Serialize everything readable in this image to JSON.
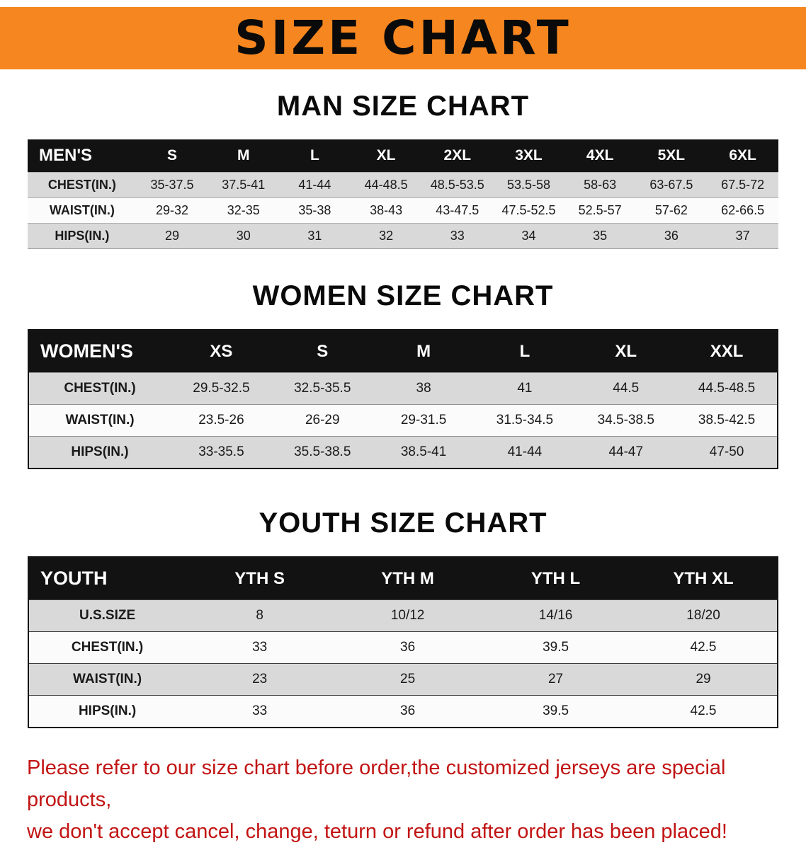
{
  "banner": {
    "title": "SIZE CHART"
  },
  "colors": {
    "banner_bg": "#F6861F",
    "table_header_bg": "#121212",
    "row_alt_bg": "#D9D9D9",
    "notice_text": "#C21414"
  },
  "chart_data": [
    {
      "type": "table",
      "title": "MAN SIZE CHART",
      "header": [
        "MEN'S",
        "S",
        "M",
        "L",
        "XL",
        "2XL",
        "3XL",
        "4XL",
        "5XL",
        "6XL"
      ],
      "rows": [
        [
          "CHEST(IN.)",
          "35-37.5",
          "37.5-41",
          "41-44",
          "44-48.5",
          "48.5-53.5",
          "53.5-58",
          "58-63",
          "63-67.5",
          "67.5-72"
        ],
        [
          "WAIST(IN.)",
          "29-32",
          "32-35",
          "35-38",
          "38-43",
          "43-47.5",
          "47.5-52.5",
          "52.5-57",
          "57-62",
          "62-66.5"
        ],
        [
          "HIPS(IN.)",
          "29",
          "30",
          "31",
          "32",
          "33",
          "34",
          "35",
          "36",
          "37"
        ]
      ]
    },
    {
      "type": "table",
      "title": "WOMEN SIZE CHART",
      "header": [
        "WOMEN'S",
        "XS",
        "S",
        "M",
        "L",
        "XL",
        "XXL"
      ],
      "rows": [
        [
          "CHEST(IN.)",
          "29.5-32.5",
          "32.5-35.5",
          "38",
          "41",
          "44.5",
          "44.5-48.5"
        ],
        [
          "WAIST(IN.)",
          "23.5-26",
          "26-29",
          "29-31.5",
          "31.5-34.5",
          "34.5-38.5",
          "38.5-42.5"
        ],
        [
          "HIPS(IN.)",
          "33-35.5",
          "35.5-38.5",
          "38.5-41",
          "41-44",
          "44-47",
          "47-50"
        ]
      ]
    },
    {
      "type": "table",
      "title": "YOUTH SIZE CHART",
      "header": [
        "YOUTH",
        "YTH S",
        "YTH M",
        "YTH L",
        "YTH XL"
      ],
      "rows": [
        [
          "U.S.SIZE",
          "8",
          "10/12",
          "14/16",
          "18/20"
        ],
        [
          "CHEST(IN.)",
          "33",
          "36",
          "39.5",
          "42.5"
        ],
        [
          "WAIST(IN.)",
          "23",
          "25",
          "27",
          "29"
        ],
        [
          "HIPS(IN.)",
          "33",
          "36",
          "39.5",
          "42.5"
        ]
      ]
    }
  ],
  "notice": {
    "line1": "Please refer to our size chart before order,the customized jerseys are special products,",
    "line2": "we don't accept cancel, change, teturn or refund after order has been placed!"
  }
}
